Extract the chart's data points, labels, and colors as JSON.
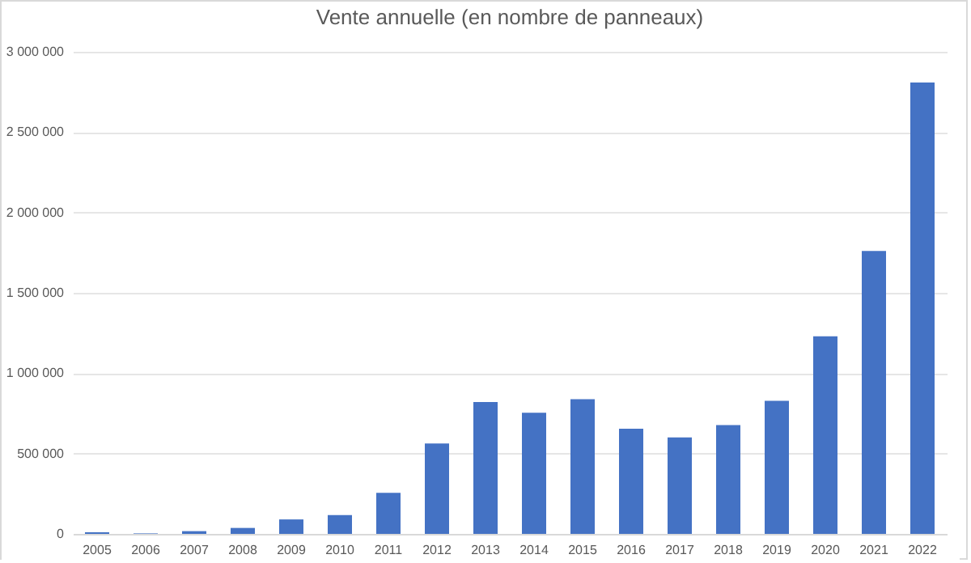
{
  "chart_data": {
    "type": "bar",
    "title": "Vente annuelle (en nombre de panneaux)",
    "categories": [
      "2005",
      "2006",
      "2007",
      "2008",
      "2009",
      "2010",
      "2011",
      "2012",
      "2013",
      "2014",
      "2015",
      "2016",
      "2017",
      "2018",
      "2019",
      "2020",
      "2021",
      "2022"
    ],
    "values": [
      10000,
      3000,
      17000,
      37000,
      90000,
      117000,
      255000,
      563000,
      821000,
      754000,
      838000,
      654000,
      600000,
      677000,
      828000,
      1230000,
      1760000,
      2809000
    ],
    "color": "#4472c4",
    "ylim": [
      0,
      3000000
    ],
    "yticks": [
      {
        "value": 0,
        "label": "0"
      },
      {
        "value": 500000,
        "label": "500 000"
      },
      {
        "value": 1000000,
        "label": "1 000 000"
      },
      {
        "value": 1500000,
        "label": "1 500 000"
      },
      {
        "value": 2000000,
        "label": "2 000 000"
      },
      {
        "value": 2500000,
        "label": "2 500 000"
      },
      {
        "value": 3000000,
        "label": "3 000 000"
      }
    ],
    "grid": "y"
  }
}
